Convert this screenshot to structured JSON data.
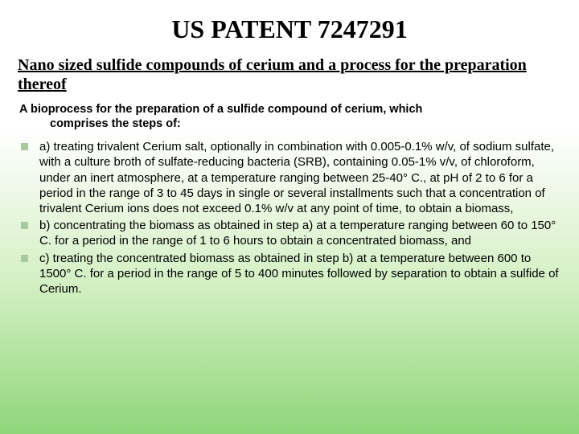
{
  "title": "US PATENT 7247291",
  "subtitle": "Nano sized sulfide compounds of cerium and a process for the preparation thereof",
  "intro_line1": "A bioprocess for the preparation of a sulfide compound of cerium, which",
  "intro_line2": "comprises the steps of:",
  "bullets": [
    "a) treating trivalent Cerium salt, optionally in combination with 0.005-0.1% w/v, of sodium sulfate, with a culture broth of sulfate-reducing bacteria (SRB), containing 0.05-1% v/v, of chloroform, under an inert atmosphere, at a temperature ranging between 25-40° C., at pH of 2 to 6 for a period in the range of 3 to 45 days in single or several installments such that a concentration of trivalent Cerium ions does not exceed 0.1% w/v at any point of time, to obtain a biomass,",
    "b) concentrating the biomass as obtained in step a) at a temperature ranging between 60 to 150° C. for a period in the range of 1 to 6 hours to obtain a concentrated biomass, and",
    "c) treating the concentrated biomass as obtained in step b) at a temperature between 600 to 1500° C. for a period in the range of 5 to 400 minutes followed by separation to obtain a sulfide of Cerium."
  ],
  "colors": {
    "bg_top": "#ffffff",
    "bg_bottom": "#8fd67a",
    "text": "#000000",
    "bullet_marker": "#a8c8a0"
  }
}
